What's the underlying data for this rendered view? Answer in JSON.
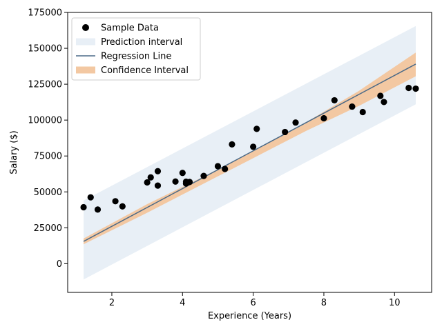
{
  "chart_data": {
    "type": "scatter",
    "xlabel": "Experience (Years)",
    "ylabel": "Salary ($)",
    "xlim": [
      0.75,
      11.05
    ],
    "ylim": [
      -20000,
      175000
    ],
    "x_ticks": [
      2,
      4,
      6,
      8,
      10
    ],
    "y_ticks": [
      0,
      25000,
      50000,
      75000,
      100000,
      125000,
      150000,
      175000
    ],
    "grid": false,
    "legend_position": "top-left",
    "legend": {
      "sample": "Sample Data",
      "prediction": "Prediction interval",
      "regression": "Regression Line",
      "confidence": "Confidence Interval"
    },
    "colors": {
      "points": "#000000",
      "regression_line": "#4b6a88",
      "prediction_band": "#e8eff6",
      "confidence_band": "#f3c8a2"
    },
    "regression_line": {
      "x": [
        1.2,
        10.6
      ],
      "y": [
        15500,
        139000
      ]
    },
    "prediction_band": {
      "x": [
        1.2,
        10.6
      ],
      "lower": [
        -11000,
        111000
      ],
      "upper": [
        44000,
        165500
      ]
    },
    "confidence_band": {
      "x": [
        1.2,
        3.0,
        4.5,
        6.0,
        7.5,
        9.0,
        10.6
      ],
      "lower": [
        13500,
        35500,
        54500,
        73500,
        92500,
        110000,
        130500
      ],
      "upper": [
        17500,
        41500,
        59500,
        78500,
        98500,
        120500,
        147000
      ]
    },
    "points": [
      {
        "x": 1.2,
        "y": 39300
      },
      {
        "x": 1.4,
        "y": 46200
      },
      {
        "x": 1.6,
        "y": 37700
      },
      {
        "x": 2.1,
        "y": 43500
      },
      {
        "x": 2.3,
        "y": 39900
      },
      {
        "x": 3.0,
        "y": 56600
      },
      {
        "x": 3.1,
        "y": 60100
      },
      {
        "x": 3.3,
        "y": 54400
      },
      {
        "x": 3.3,
        "y": 64400
      },
      {
        "x": 3.8,
        "y": 57200
      },
      {
        "x": 4.0,
        "y": 63200
      },
      {
        "x": 4.1,
        "y": 55800
      },
      {
        "x": 4.1,
        "y": 57100
      },
      {
        "x": 4.2,
        "y": 56900
      },
      {
        "x": 4.6,
        "y": 61100
      },
      {
        "x": 5.0,
        "y": 67900
      },
      {
        "x": 5.2,
        "y": 66000
      },
      {
        "x": 5.4,
        "y": 83100
      },
      {
        "x": 6.0,
        "y": 81400
      },
      {
        "x": 6.1,
        "y": 93900
      },
      {
        "x": 6.9,
        "y": 91700
      },
      {
        "x": 7.2,
        "y": 98300
      },
      {
        "x": 8.0,
        "y": 101300
      },
      {
        "x": 8.3,
        "y": 113800
      },
      {
        "x": 8.8,
        "y": 109400
      },
      {
        "x": 9.1,
        "y": 105600
      },
      {
        "x": 9.6,
        "y": 116900
      },
      {
        "x": 9.7,
        "y": 112600
      },
      {
        "x": 10.4,
        "y": 122400
      },
      {
        "x": 10.6,
        "y": 121900
      }
    ]
  }
}
